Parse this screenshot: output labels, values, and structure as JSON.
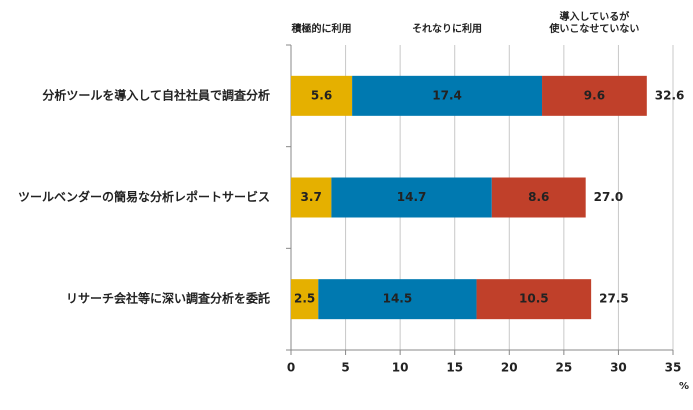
{
  "chart_data": {
    "type": "stacked-bar-horizontal",
    "categories": [
      "分析ツールを導入して自社社員で調査分析",
      "ツールベンダーの簡易な分析レポートサービス",
      "リサーチ会社等に深い調査分析を委託"
    ],
    "series": [
      {
        "name": "積極的に利用",
        "color": "#e5b000",
        "values": [
          5.6,
          3.7,
          2.5
        ]
      },
      {
        "name": "それなりに利用",
        "color": "#0079b0",
        "values": [
          17.4,
          14.7,
          14.5
        ]
      },
      {
        "name": "導入しているが\n使いこなせていない",
        "color": "#c0402a",
        "values": [
          9.6,
          8.6,
          10.5
        ]
      }
    ],
    "totals": {
      "values": [
        32.6,
        27,
        27.5
      ],
      "value_labels": [
        "32.6",
        "27.0",
        "27.5"
      ]
    },
    "xlim": [
      0,
      35
    ],
    "xticks": [
      0,
      5,
      10,
      15,
      20,
      25,
      30,
      35
    ],
    "xlabel": "%",
    "grid": true
  }
}
